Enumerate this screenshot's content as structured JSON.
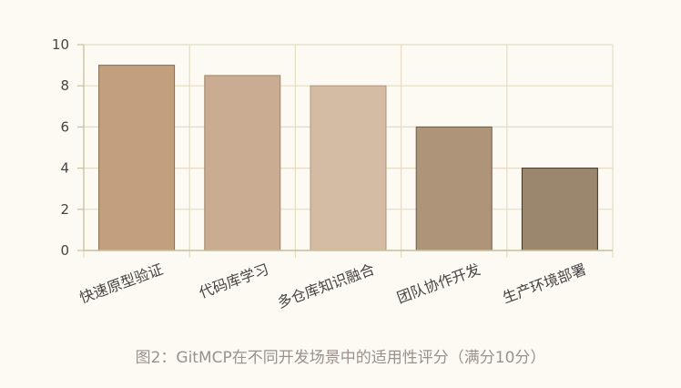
{
  "chart_data": {
    "type": "bar",
    "categories": [
      "快速原型验证",
      "代码库学习",
      "多仓库知识融合",
      "团队协作开发",
      "生产环境部署"
    ],
    "values": [
      9,
      8.5,
      8,
      6,
      4
    ],
    "ylim": [
      0,
      10
    ],
    "yticks": [
      0,
      2,
      4,
      6,
      8,
      10
    ],
    "grid": true,
    "colors": {
      "fills": [
        "#c3a07d",
        "#c9ac91",
        "#d4bba3",
        "#ae957a",
        "#9b876d"
      ],
      "strokes": [
        "#8a6a4c",
        "#a08466",
        "#b09678",
        "#6e5a44",
        "#3f3324"
      ],
      "grid": "#e4dcc3",
      "axis": "#c9bf9c",
      "text": "#444444"
    }
  },
  "caption": "图2：GitMCP在不同开发场景中的适用性评分（满分10分）"
}
